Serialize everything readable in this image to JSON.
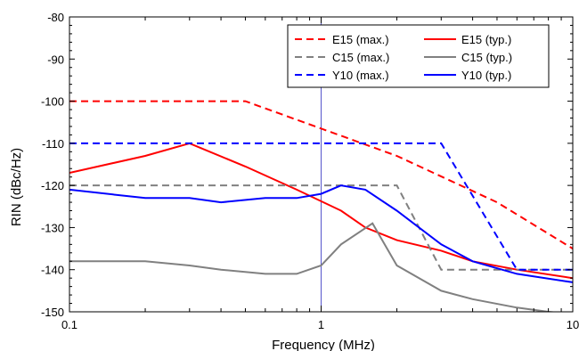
{
  "chart_data": {
    "type": "line",
    "xscale": "log",
    "xlabel": "Frequency (MHz)",
    "ylabel": "RIN (dBc/Hz)",
    "xlim": [
      0.1,
      10
    ],
    "ylim": [
      -150,
      -80
    ],
    "x_ticks": [
      0.1,
      1,
      10
    ],
    "x_tick_labels": [
      "0.1",
      "1",
      "10"
    ],
    "y_ticks": [
      -150,
      -140,
      -130,
      -120,
      -110,
      -100,
      -90,
      -80
    ],
    "y_tick_labels": [
      "-150",
      "-140",
      "-130",
      "-120",
      "-110",
      "-100",
      "-90",
      "-80"
    ],
    "vertical_marker_x": 1,
    "legend_position": "top-right",
    "grid": false,
    "series": [
      {
        "name": "E15 (max.)",
        "color": "#ff0000",
        "style": "dashed",
        "x": [
          0.1,
          0.5,
          1,
          2,
          5,
          10
        ],
        "y": [
          -100,
          -100,
          -106.5,
          -113,
          -124,
          -135
        ]
      },
      {
        "name": "E15 (typ.)",
        "color": "#ff0000",
        "style": "solid",
        "x": [
          0.1,
          0.2,
          0.3,
          0.5,
          0.8,
          1.2,
          1.5,
          2,
          3,
          4,
          6,
          10
        ],
        "y": [
          -117,
          -113,
          -110,
          -115.5,
          -121,
          -126,
          -130,
          -133,
          -135.5,
          -138,
          -140,
          -142
        ]
      },
      {
        "name": "C15 (max.)",
        "color": "#808080",
        "style": "dashed",
        "x": [
          0.1,
          2,
          3,
          10
        ],
        "y": [
          -120,
          -120,
          -140,
          -140
        ]
      },
      {
        "name": "C15 (typ.)",
        "color": "#808080",
        "style": "solid",
        "x": [
          0.1,
          0.2,
          0.3,
          0.4,
          0.6,
          0.8,
          1,
          1.2,
          1.6,
          2,
          3,
          4,
          6,
          8,
          10
        ],
        "y": [
          -138,
          -138,
          -139,
          -140,
          -141,
          -141,
          -139,
          -134,
          -129,
          -139,
          -145,
          -147,
          -149,
          -150,
          -150.5
        ]
      },
      {
        "name": "Y10 (max.)",
        "color": "#0000ff",
        "style": "dashed",
        "x": [
          0.1,
          3,
          6,
          10
        ],
        "y": [
          -110,
          -110,
          -140,
          -140
        ]
      },
      {
        "name": "Y10 (typ.)",
        "color": "#0000ff",
        "style": "solid",
        "x": [
          0.1,
          0.2,
          0.3,
          0.4,
          0.6,
          0.8,
          1,
          1.2,
          1.5,
          2,
          3,
          4,
          6,
          10
        ],
        "y": [
          -121,
          -123,
          -123,
          -124,
          -123,
          -123,
          -122,
          -120,
          -121,
          -126,
          -134,
          -138,
          -141,
          -143
        ]
      }
    ]
  }
}
